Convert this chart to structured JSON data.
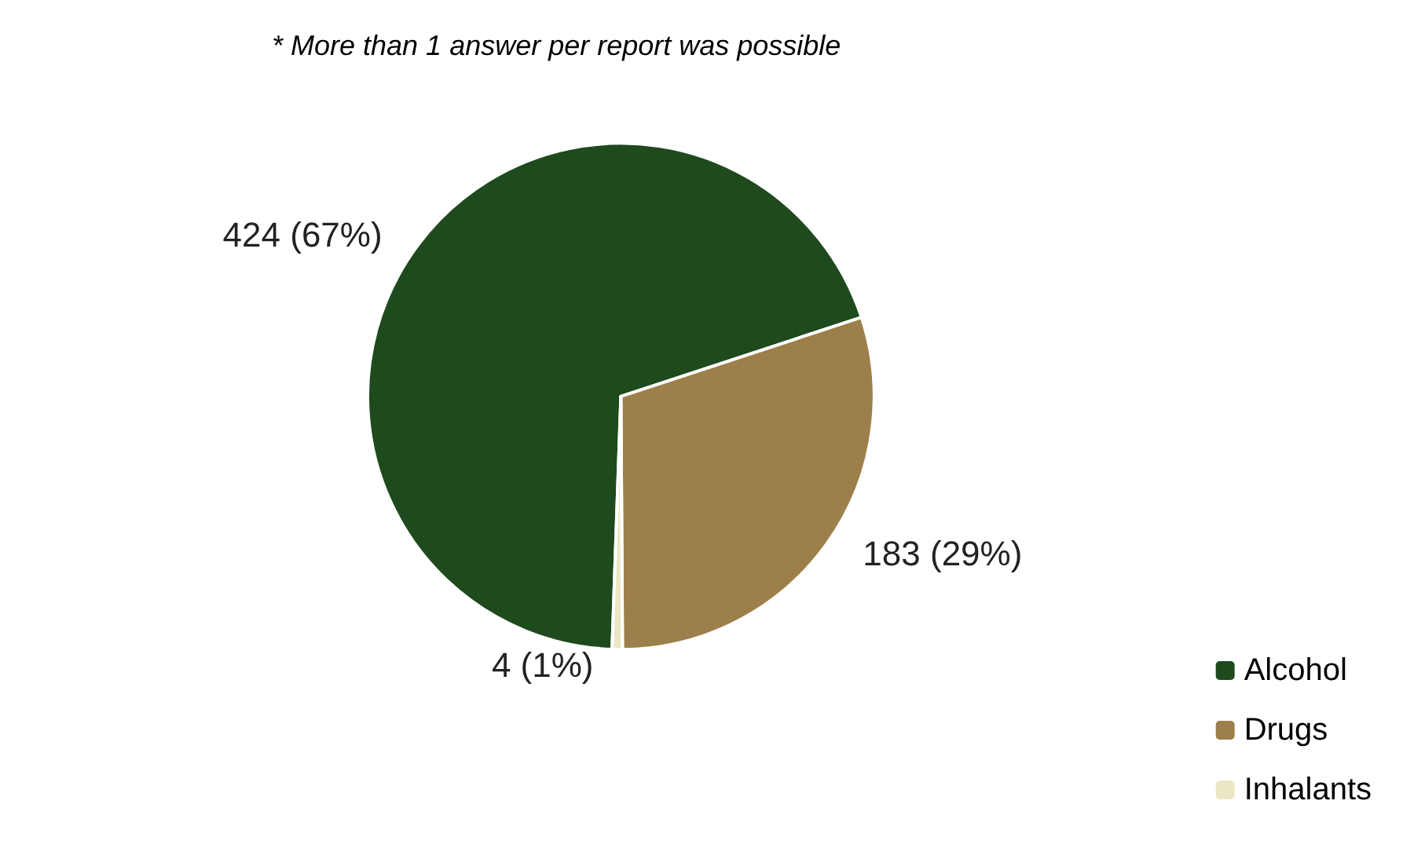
{
  "chart_data": {
    "type": "pie",
    "categories": [
      "Alcohol",
      "Drugs",
      "Inhalants"
    ],
    "values": [
      424,
      183,
      4
    ],
    "colors": [
      "#1e4a1e",
      "#9c7f4a",
      "#ebe7c4"
    ],
    "value_labels": [
      "424 (67%)",
      "183 (29%)",
      "4 (1%)"
    ],
    "annotations": [
      "* More than 1 answer per report was possible"
    ],
    "legend": "bottom right"
  }
}
